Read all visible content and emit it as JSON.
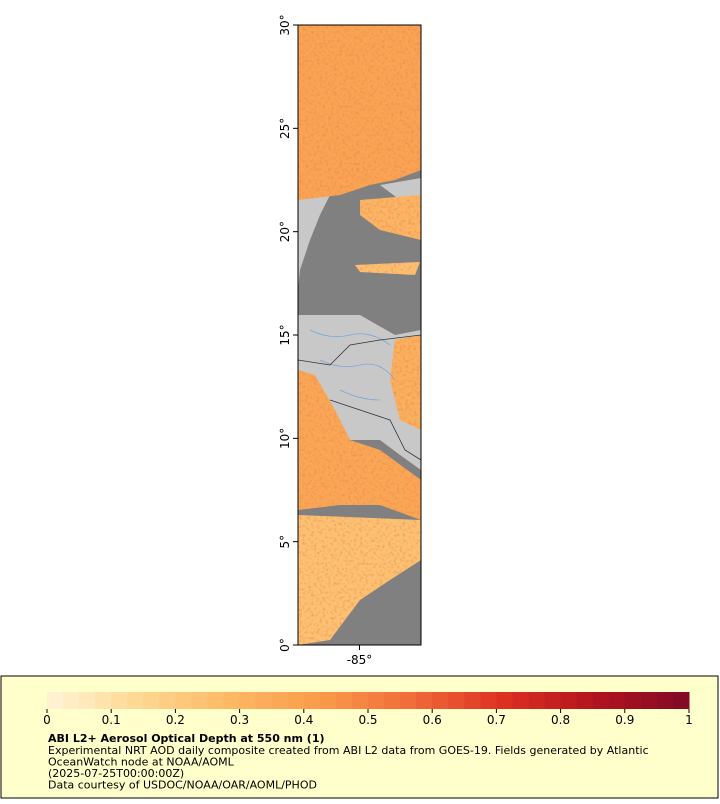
{
  "map": {
    "yaxis": {
      "ylim": [
        0,
        30
      ],
      "yticks": [
        {
          "value": 0,
          "label": "0°"
        },
        {
          "value": 5,
          "label": "5°"
        },
        {
          "value": 10,
          "label": "10°"
        },
        {
          "value": 15,
          "label": "15°"
        },
        {
          "value": 20,
          "label": "20°"
        },
        {
          "value": 25,
          "label": "25°"
        },
        {
          "value": 30,
          "label": "30°"
        }
      ]
    },
    "xaxis": {
      "xlim": [
        -88,
        -82
      ],
      "xticks": [
        {
          "value": -85,
          "label": "-85°"
        }
      ]
    }
  },
  "colorbar": {
    "range": [
      0,
      1
    ],
    "ticks": [
      0,
      0.1,
      0.2,
      0.3,
      0.4,
      0.5,
      0.6,
      0.7,
      0.8,
      0.9,
      1
    ],
    "colors": [
      "#fff5d8",
      "#fed792",
      "#fdb864",
      "#fa9a4a",
      "#f06a38",
      "#dc2f22",
      "#b1131e",
      "#800a26"
    ]
  },
  "legend": {
    "title": "ABI L2+ Aerosol Optical Depth at 550 nm (1)",
    "lines": [
      "Experimental NRT AOD daily composite created from ABI L2 data from GOES-19. Fields generated by Atlantic",
      "OceanWatch node at NOAA/AOML",
      "(2025-07-25T00:00:00Z)",
      "Data courtesy of USDOC/NOAA/OAR/AOML/PHOD"
    ]
  }
}
